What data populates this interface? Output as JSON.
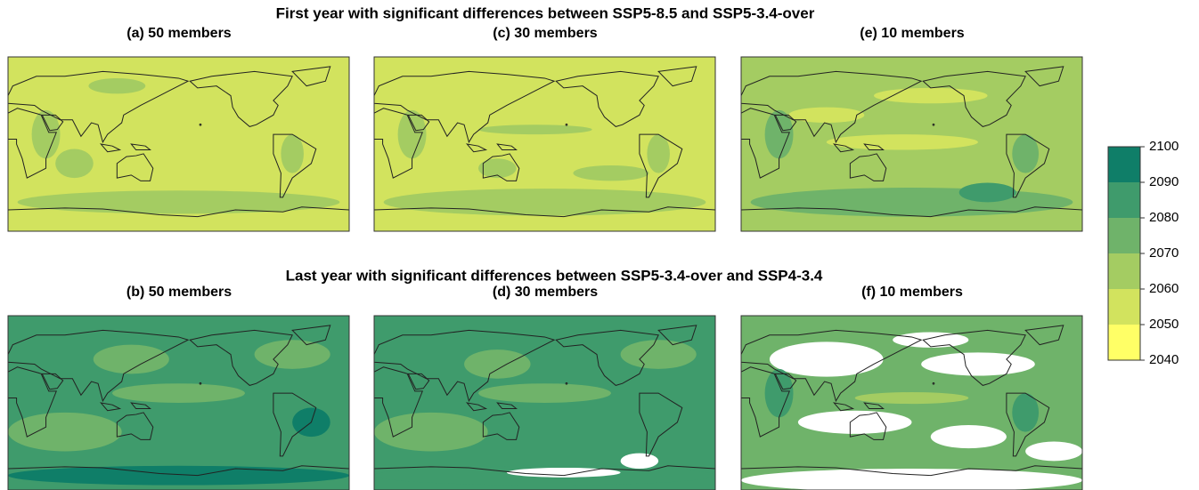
{
  "figure": {
    "rows": [
      {
        "title": "First year with significant differences between SSP5-8.5 and SSP5-3.4-over",
        "panels": [
          "(a) 50 members",
          "(c) 30 members",
          "(e) 10 members"
        ]
      },
      {
        "title": "Last year with significant differences between SSP5-3.4-over and SSP4-3.4",
        "panels": [
          "(b) 50 members",
          "(d) 30 members",
          "(f) 10 members"
        ]
      }
    ],
    "colorbar": {
      "ticks": [
        2040,
        2050,
        2060,
        2070,
        2080,
        2090,
        2100
      ],
      "colors": [
        "#ffff66",
        "#d2e35e",
        "#a4cc62",
        "#6fb36a",
        "#3f9b6c",
        "#0f7e68"
      ]
    }
  }
}
